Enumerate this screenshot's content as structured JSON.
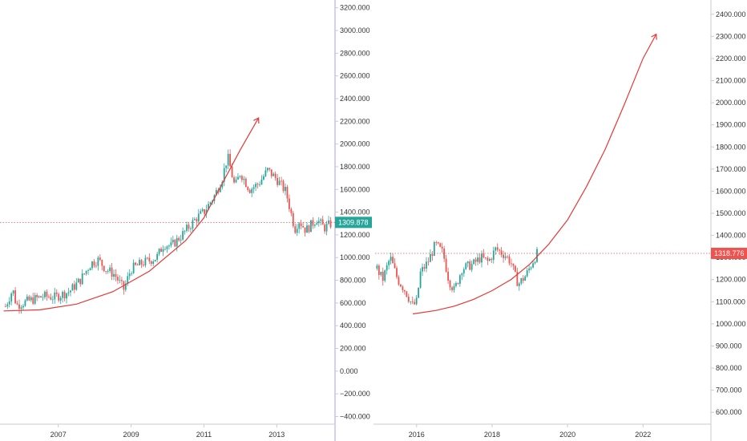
{
  "colors": {
    "up": "#26a69a",
    "down": "#ef5350",
    "arrow": "#e53935",
    "left_tag": "#26a69a",
    "right_tag": "#ef5350",
    "axis_line": "#c9cbd1",
    "divider": "#b39ddb",
    "text": "#333333"
  },
  "chart_data": [
    {
      "type": "candlestick",
      "title": "",
      "y_axis_side": "right",
      "yticks": [
        "3200.000",
        "3000.000",
        "2800.000",
        "2600.000",
        "2400.000",
        "2200.000",
        "2000.000",
        "1800.000",
        "1600.000",
        "1400.000",
        "1200.000",
        "1000.000",
        "800.000",
        "600.000",
        "400.000",
        "200.000",
        "0.000",
        "−200.000",
        "−400.000"
      ],
      "ylim": [
        -460,
        3240
      ],
      "xticks": [
        "2007",
        "2009",
        "2011",
        "2013"
      ],
      "xtick_values": [
        2007,
        2009,
        2011,
        2013
      ],
      "xlim": [
        2005.4,
        2014.6
      ],
      "last_price": 1309.878,
      "last_price_label": "1309.878",
      "price_path": [
        [
          2005.55,
          570
        ],
        [
          2005.75,
          720
        ],
        [
          2005.85,
          580
        ],
        [
          2006.2,
          620
        ],
        [
          2006.6,
          660
        ],
        [
          2006.9,
          650
        ],
        [
          2007.3,
          700
        ],
        [
          2007.6,
          800
        ],
        [
          2007.9,
          950
        ],
        [
          2008.1,
          980
        ],
        [
          2008.3,
          900
        ],
        [
          2008.55,
          850
        ],
        [
          2008.8,
          720
        ],
        [
          2009.0,
          900
        ],
        [
          2009.3,
          950
        ],
        [
          2009.7,
          1000
        ],
        [
          2009.9,
          1120
        ],
        [
          2010.1,
          1100
        ],
        [
          2010.4,
          1200
        ],
        [
          2010.8,
          1350
        ],
        [
          2011.0,
          1400
        ],
        [
          2011.3,
          1550
        ],
        [
          2011.5,
          1700
        ],
        [
          2011.65,
          1890
        ],
        [
          2011.85,
          1620
        ],
        [
          2012.0,
          1750
        ],
        [
          2012.25,
          1600
        ],
        [
          2012.5,
          1650
        ],
        [
          2012.75,
          1770
        ],
        [
          2013.0,
          1690
        ],
        [
          2013.25,
          1580
        ],
        [
          2013.4,
          1380
        ],
        [
          2013.5,
          1250
        ],
        [
          2013.6,
          1330
        ],
        [
          2013.8,
          1240
        ],
        [
          2014.1,
          1340
        ],
        [
          2014.3,
          1260
        ],
        [
          2014.5,
          1300
        ]
      ],
      "trend_curve": [
        [
          2005.5,
          530
        ],
        [
          2006.5,
          540
        ],
        [
          2007.5,
          590
        ],
        [
          2008.5,
          700
        ],
        [
          2009.5,
          880
        ],
        [
          2010.5,
          1150
        ],
        [
          2011.0,
          1350
        ],
        [
          2011.5,
          1650
        ],
        [
          2012.0,
          1950
        ],
        [
          2012.5,
          2230
        ]
      ]
    },
    {
      "type": "candlestick",
      "title": "",
      "y_axis_side": "right",
      "yticks": [
        "2400.000",
        "2300.000",
        "2200.000",
        "2100.000",
        "2000.000",
        "1900.000",
        "1800.000",
        "1700.000",
        "1600.000",
        "1500.000",
        "1400.000",
        "1300.000",
        "1200.000",
        "1100.000",
        "1000.000",
        "900.000",
        "800.000",
        "700.000",
        "600.000"
      ],
      "ylim": [
        550,
        2450
      ],
      "xticks": [
        "2016",
        "2018",
        "2020",
        "2022"
      ],
      "xtick_values": [
        2016,
        2018,
        2020,
        2022
      ],
      "xlim": [
        2014.9,
        2023.8
      ],
      "last_price": 1318.776,
      "last_price_label": "1318.776",
      "price_path": [
        [
          2014.95,
          1250
        ],
        [
          2015.1,
          1200
        ],
        [
          2015.3,
          1300
        ],
        [
          2015.5,
          1200
        ],
        [
          2015.7,
          1150
        ],
        [
          2015.9,
          1080
        ],
        [
          2016.0,
          1100
        ],
        [
          2016.1,
          1230
        ],
        [
          2016.3,
          1280
        ],
        [
          2016.5,
          1360
        ],
        [
          2016.7,
          1320
        ],
        [
          2016.85,
          1200
        ],
        [
          2017.0,
          1150
        ],
        [
          2017.2,
          1250
        ],
        [
          2017.5,
          1270
        ],
        [
          2017.7,
          1300
        ],
        [
          2017.9,
          1280
        ],
        [
          2018.1,
          1340
        ],
        [
          2018.35,
          1310
        ],
        [
          2018.5,
          1280
        ],
        [
          2018.6,
          1220
        ],
        [
          2018.7,
          1180
        ],
        [
          2018.9,
          1220
        ],
        [
          2019.1,
          1290
        ],
        [
          2019.2,
          1320
        ]
      ],
      "trend_curve": [
        [
          2015.9,
          1045
        ],
        [
          2016.5,
          1060
        ],
        [
          2017.0,
          1080
        ],
        [
          2017.5,
          1110
        ],
        [
          2018.0,
          1150
        ],
        [
          2018.5,
          1200
        ],
        [
          2019.0,
          1270
        ],
        [
          2019.5,
          1360
        ],
        [
          2020.0,
          1470
        ],
        [
          2020.5,
          1620
        ],
        [
          2021.0,
          1790
        ],
        [
          2021.5,
          1990
        ],
        [
          2022.0,
          2200
        ],
        [
          2022.35,
          2310
        ]
      ]
    }
  ]
}
